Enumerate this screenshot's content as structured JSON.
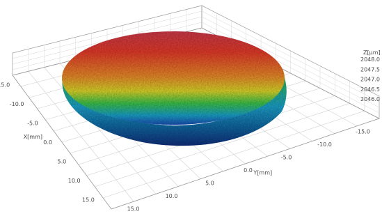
{
  "chart_data": {
    "type": "surface3d",
    "title": "",
    "x_axis": {
      "label": "X[mm]",
      "ticks": [
        "-15.0",
        "-10.0",
        "-5.0",
        "0.0",
        "5.0",
        "10.0",
        "15.0"
      ],
      "range": [
        -15,
        15
      ]
    },
    "y_axis": {
      "label": "Y[mm]",
      "ticks": [
        "-15.0",
        "-10.0",
        "-5.0",
        "0.0",
        "5.0",
        "10.0",
        "15.0"
      ],
      "range": [
        -15,
        15
      ]
    },
    "z_axis": {
      "label": "Z[µm]",
      "ticks": [
        "2046.0",
        "2046.5",
        "2047.0",
        "2047.5",
        "2048.0"
      ],
      "range": [
        2046.0,
        2048.0
      ]
    },
    "surface": {
      "shape": "circular dome",
      "colormap": [
        "#1a4fb5",
        "#1aa0c8",
        "#3cc24a",
        "#d9d42a",
        "#e8892a",
        "#e23a2a",
        "#cc3a4a"
      ],
      "low_color": "#1a4fb5",
      "high_color": "#e23a2a"
    },
    "grid": true
  }
}
